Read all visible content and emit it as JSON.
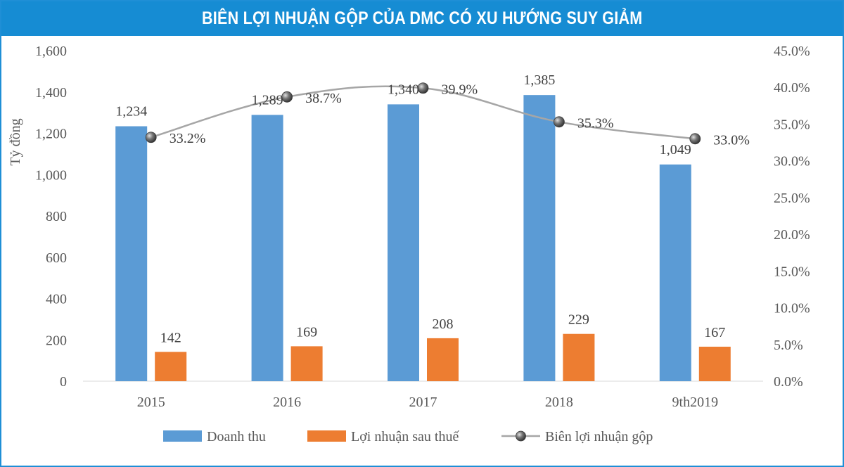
{
  "title": "BIÊN LỢI NHUẬN GỘP CỦA DMC CÓ XU HƯỚNG SUY GIẢM",
  "colors": {
    "title_bg": "#168cd3",
    "doanh_thu": "#5b9bd5",
    "loi_nhuan": "#ed7d31",
    "bien_line": "#a6a6a6",
    "marker": "#4a4a4a"
  },
  "chart_data": {
    "type": "bar",
    "title": "BIÊN LỢI NHUẬN GỘP CỦA DMC CÓ XU HƯỚNG SUY GIẢM",
    "categories": [
      "2015",
      "2016",
      "2017",
      "2018",
      "9th2019"
    ],
    "ylabel": "Tỷ đồng",
    "ylim": [
      0,
      1600
    ],
    "y_ticks": [
      "0",
      "200",
      "400",
      "600",
      "800",
      "1,000",
      "1,200",
      "1,400",
      "1,600"
    ],
    "y2lim": [
      0,
      45
    ],
    "y2_ticks": [
      "0.0%",
      "5.0%",
      "10.0%",
      "15.0%",
      "20.0%",
      "25.0%",
      "30.0%",
      "35.0%",
      "40.0%",
      "45.0%"
    ],
    "series": [
      {
        "name": "Doanh thu",
        "type": "bar",
        "values": [
          1234,
          1289,
          1340,
          1385,
          1049
        ],
        "labels": [
          "1,234",
          "1,289",
          "1,340",
          "1,385",
          "1,049"
        ]
      },
      {
        "name": "Lợi nhuận sau thuế",
        "type": "bar",
        "values": [
          142,
          169,
          208,
          229,
          167
        ],
        "labels": [
          "142",
          "169",
          "208",
          "229",
          "167"
        ]
      },
      {
        "name": "Biên lợi nhuận gộp",
        "type": "line",
        "axis": "right",
        "values": [
          33.2,
          38.7,
          39.9,
          35.3,
          33.0
        ],
        "labels": [
          "33.2%",
          "38.7%",
          "39.9%",
          "35.3%",
          "33.0%"
        ]
      }
    ],
    "grid": false,
    "legend": "bottom"
  }
}
